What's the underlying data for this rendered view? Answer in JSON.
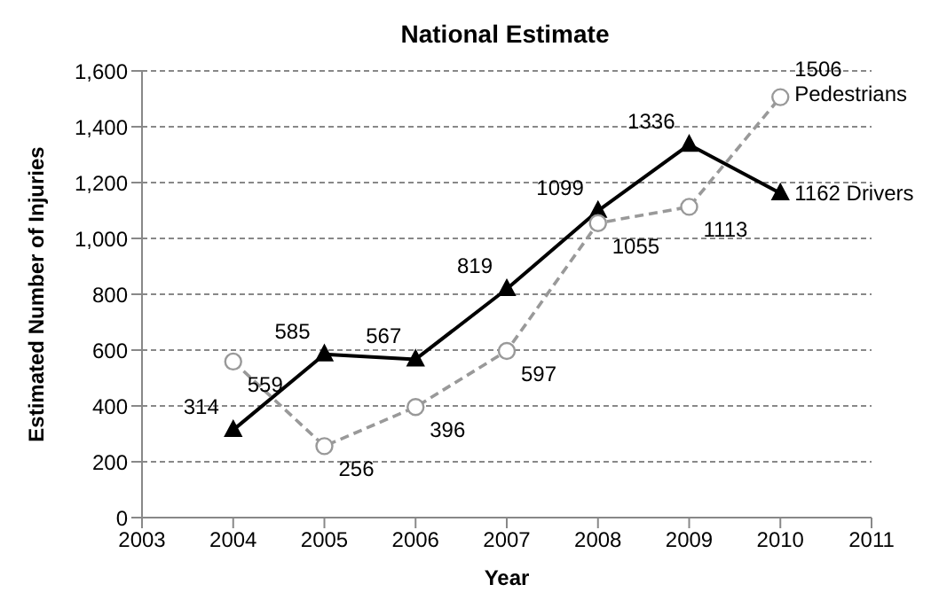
{
  "chart_data": {
    "type": "line",
    "title": "National Estimate",
    "xlabel": "Year",
    "ylabel": "Estimated Number of Injuries",
    "xlim": [
      2003,
      2011
    ],
    "xticks": [
      2003,
      2004,
      2005,
      2006,
      2007,
      2008,
      2009,
      2010,
      2011
    ],
    "ylim": [
      0,
      1600
    ],
    "yticks": [
      0,
      200,
      400,
      600,
      800,
      {
        "value": 1000,
        "label": "1,000"
      },
      {
        "value": 1200,
        "label": "1,200"
      },
      {
        "value": 1400,
        "label": "1,400"
      },
      {
        "value": 1600,
        "label": "1,600"
      }
    ],
    "grid": "y",
    "legend": false,
    "data_labels": true,
    "x": [
      2004,
      2005,
      2006,
      2007,
      2008,
      2009,
      2010
    ],
    "series": [
      {
        "name": "Drivers",
        "color": "#000000",
        "marker": "triangle",
        "line_style": "solid",
        "values": [
          314,
          585,
          567,
          819,
          1099,
          1336,
          1162
        ]
      },
      {
        "name": "Pedestrians",
        "color": "#999999",
        "marker": "circle",
        "line_style": "dashed",
        "values": [
          559,
          256,
          396,
          597,
          1055,
          1113,
          1506
        ]
      }
    ]
  }
}
